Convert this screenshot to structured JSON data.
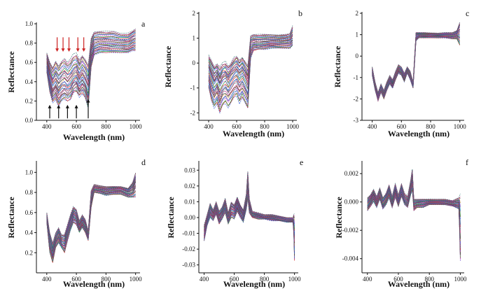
{
  "chart_data": [
    {
      "panel": "a",
      "type": "line",
      "xlabel": "Wavelength (nm)",
      "ylabel": "Reflectance",
      "xlim": [
        330,
        1030
      ],
      "ylim": [
        0.0,
        1.0
      ],
      "xticks": [
        400,
        600,
        800,
        1000
      ],
      "yticks": [
        0.0,
        0.2,
        0.4,
        0.6,
        0.8,
        1.0
      ],
      "ytick_labels": [
        "0.0",
        "0.2",
        "0.4",
        "0.6",
        "0.8",
        "1.0"
      ],
      "annotations": {
        "down_arrows_red_nm": [
          470,
          510,
          550,
          610,
          650
        ],
        "up_arrows_black_nm": [
          420,
          480,
          540,
          600,
          680
        ]
      },
      "series_band": {
        "x": [
          400,
          420,
          440,
          460,
          480,
          500,
          520,
          540,
          560,
          580,
          600,
          620,
          640,
          660,
          680,
          700,
          720,
          760,
          800,
          850,
          900,
          950,
          980,
          1000
        ],
        "low": [
          0.5,
          0.3,
          0.18,
          0.22,
          0.15,
          0.2,
          0.22,
          0.2,
          0.22,
          0.28,
          0.3,
          0.24,
          0.28,
          0.24,
          0.12,
          0.55,
          0.68,
          0.7,
          0.7,
          0.7,
          0.7,
          0.7,
          0.72,
          0.72
        ],
        "mid": [
          0.6,
          0.45,
          0.35,
          0.4,
          0.33,
          0.38,
          0.4,
          0.37,
          0.4,
          0.44,
          0.47,
          0.4,
          0.45,
          0.4,
          0.32,
          0.7,
          0.78,
          0.8,
          0.8,
          0.8,
          0.79,
          0.79,
          0.82,
          0.83
        ],
        "high": [
          0.7,
          0.6,
          0.55,
          0.62,
          0.57,
          0.62,
          0.64,
          0.6,
          0.63,
          0.68,
          0.69,
          0.62,
          0.68,
          0.64,
          0.58,
          0.85,
          0.92,
          0.92,
          0.92,
          0.92,
          0.9,
          0.9,
          0.93,
          0.95
        ]
      }
    },
    {
      "panel": "b",
      "type": "line",
      "xlabel": "Wavelength (nm)",
      "ylabel": "Reflectance",
      "xlim": [
        330,
        1030
      ],
      "ylim": [
        -2.3,
        2.0
      ],
      "xticks": [
        400,
        600,
        800,
        1000
      ],
      "yticks": [
        -2,
        -1,
        0,
        1,
        2
      ],
      "ytick_labels": [
        "-2",
        "-1",
        "0",
        "1",
        "2"
      ],
      "series_band": {
        "x": [
          400,
          420,
          440,
          460,
          480,
          500,
          520,
          540,
          560,
          580,
          600,
          620,
          640,
          660,
          680,
          700,
          720,
          760,
          800,
          850,
          900,
          950,
          980,
          1000
        ],
        "low": [
          -1.0,
          -1.5,
          -1.8,
          -1.6,
          -2.0,
          -1.7,
          -1.6,
          -1.8,
          -1.6,
          -1.4,
          -1.3,
          -1.6,
          -1.4,
          -1.6,
          -1.8,
          0.2,
          0.5,
          0.55,
          0.55,
          0.6,
          0.6,
          0.6,
          0.6,
          0.7
        ],
        "mid": [
          -0.2,
          -0.5,
          -0.8,
          -0.6,
          -0.9,
          -0.7,
          -0.6,
          -0.8,
          -0.6,
          -0.45,
          -0.35,
          -0.55,
          -0.4,
          -0.6,
          -0.9,
          0.75,
          0.8,
          0.82,
          0.82,
          0.85,
          0.85,
          0.88,
          0.9,
          1.0
        ],
        "high": [
          0.3,
          0.1,
          -0.1,
          0.0,
          -0.2,
          0.0,
          0.05,
          -0.1,
          0.05,
          0.2,
          0.3,
          0.1,
          0.25,
          0.1,
          -0.1,
          1.1,
          1.15,
          1.15,
          1.15,
          1.15,
          1.12,
          1.15,
          1.2,
          1.5
        ]
      }
    },
    {
      "panel": "c",
      "type": "line",
      "xlabel": "Wavelength (nm)",
      "ylabel": "Reflectance",
      "xlim": [
        330,
        1030
      ],
      "ylim": [
        -3.0,
        2.0
      ],
      "xticks": [
        400,
        600,
        800,
        1000
      ],
      "yticks": [
        -3,
        -2,
        -1,
        0,
        1,
        2
      ],
      "ytick_labels": [
        "-3",
        "-2",
        "-1",
        "0",
        "1",
        "2"
      ],
      "series_band": {
        "x": [
          400,
          420,
          440,
          460,
          480,
          500,
          520,
          540,
          560,
          580,
          600,
          620,
          640,
          660,
          680,
          700,
          720,
          760,
          800,
          850,
          900,
          950,
          980,
          1000
        ],
        "low": [
          -0.9,
          -1.6,
          -2.1,
          -1.7,
          -2.0,
          -1.6,
          -1.3,
          -1.5,
          -1.1,
          -0.8,
          -0.9,
          -1.2,
          -0.8,
          -1.1,
          -1.5,
          0.7,
          0.85,
          0.85,
          0.85,
          0.85,
          0.85,
          0.8,
          0.8,
          0.5
        ],
        "mid": [
          -0.7,
          -1.4,
          -1.9,
          -1.5,
          -1.8,
          -1.4,
          -1.1,
          -1.3,
          -0.9,
          -0.6,
          -0.7,
          -1.0,
          -0.65,
          -0.9,
          -1.35,
          0.95,
          1.0,
          1.0,
          0.98,
          0.97,
          0.97,
          0.96,
          1.0,
          1.0
        ],
        "high": [
          -0.5,
          -1.2,
          -1.7,
          -1.3,
          -1.6,
          -1.2,
          -0.9,
          -1.1,
          -0.7,
          -0.4,
          -0.5,
          -0.8,
          -0.5,
          -0.7,
          -1.2,
          1.1,
          1.1,
          1.1,
          1.08,
          1.08,
          1.1,
          1.1,
          1.2,
          1.6
        ]
      }
    },
    {
      "panel": "d",
      "type": "line",
      "xlabel": "Wavelength (nm)",
      "ylabel": "Reflectance",
      "xlim": [
        330,
        1030
      ],
      "ylim": [
        0.0,
        1.1
      ],
      "xticks": [
        400,
        600,
        800,
        1000
      ],
      "yticks": [
        0.2,
        0.4,
        0.6,
        0.8,
        1.0
      ],
      "ytick_labels": [
        "0.2",
        "0.4",
        "0.6",
        "0.8",
        "1.0"
      ],
      "series_band": {
        "x": [
          400,
          420,
          440,
          460,
          480,
          500,
          520,
          540,
          560,
          580,
          600,
          620,
          640,
          660,
          680,
          700,
          720,
          760,
          800,
          850,
          900,
          950,
          980,
          1000
        ],
        "low": [
          0.5,
          0.2,
          0.1,
          0.25,
          0.3,
          0.25,
          0.2,
          0.32,
          0.42,
          0.5,
          0.48,
          0.4,
          0.45,
          0.4,
          0.32,
          0.65,
          0.8,
          0.79,
          0.77,
          0.78,
          0.78,
          0.75,
          0.75,
          0.75
        ],
        "mid": [
          0.55,
          0.3,
          0.2,
          0.33,
          0.38,
          0.31,
          0.3,
          0.4,
          0.5,
          0.58,
          0.55,
          0.46,
          0.52,
          0.47,
          0.37,
          0.75,
          0.84,
          0.83,
          0.82,
          0.83,
          0.83,
          0.8,
          0.82,
          0.9
        ],
        "high": [
          0.6,
          0.4,
          0.3,
          0.4,
          0.45,
          0.38,
          0.38,
          0.48,
          0.58,
          0.66,
          0.63,
          0.52,
          0.58,
          0.53,
          0.42,
          0.82,
          0.88,
          0.87,
          0.86,
          0.86,
          0.86,
          0.84,
          0.9,
          1.0
        ]
      }
    },
    {
      "panel": "e",
      "type": "line",
      "xlabel": "Wavelength (nm)",
      "ylabel": "Reflectance",
      "xlim": [
        365,
        1025
      ],
      "ylim": [
        -0.035,
        0.035
      ],
      "xticks": [
        400,
        600,
        800,
        1000
      ],
      "yticks": [
        -0.03,
        -0.02,
        -0.01,
        0.0,
        0.01,
        0.02,
        0.03
      ],
      "ytick_labels": [
        "-0.03",
        "-0.02",
        "-0.01",
        "0.00",
        "0.01",
        "0.02",
        "0.03"
      ],
      "series_band": {
        "x": [
          400,
          420,
          440,
          460,
          480,
          500,
          520,
          540,
          560,
          580,
          600,
          620,
          640,
          660,
          680,
          690,
          700,
          720,
          760,
          800,
          850,
          900,
          950,
          990,
          995,
          1000
        ],
        "low": [
          -0.015,
          -0.005,
          0.0,
          -0.002,
          0.002,
          -0.004,
          -0.001,
          0.003,
          -0.004,
          0.0,
          -0.001,
          0.004,
          0.0,
          -0.003,
          0.005,
          0.012,
          0.003,
          0.0,
          -0.001,
          -0.001,
          -0.002,
          -0.002,
          -0.003,
          -0.003,
          -0.01,
          -0.027
        ],
        "mid": [
          -0.01,
          -0.002,
          0.005,
          0.002,
          0.006,
          0.0,
          0.003,
          0.008,
          -0.001,
          0.005,
          0.004,
          0.009,
          0.004,
          0.001,
          0.01,
          0.026,
          0.008,
          0.002,
          0.001,
          0.0,
          0.0,
          -0.001,
          -0.002,
          -0.002,
          -0.005,
          -0.02
        ],
        "high": [
          -0.005,
          0.002,
          0.009,
          0.005,
          0.01,
          0.004,
          0.007,
          0.012,
          0.003,
          0.01,
          0.008,
          0.013,
          0.008,
          0.005,
          0.015,
          0.029,
          0.012,
          0.004,
          0.003,
          0.002,
          0.002,
          0.001,
          0.0,
          0.0,
          0.002,
          0.002
        ]
      }
    },
    {
      "panel": "f",
      "type": "line",
      "xlabel": "Wavelength (nm)",
      "ylabel": "Reflectance",
      "xlim": [
        365,
        1025
      ],
      "ylim": [
        -0.005,
        0.0028
      ],
      "xticks": [
        400,
        600,
        800,
        1000
      ],
      "yticks": [
        -0.004,
        -0.002,
        0.0,
        0.002
      ],
      "ytick_labels": [
        "-0.004",
        "-0.002",
        "0.000",
        "0.002"
      ],
      "series_band": {
        "x": [
          400,
          420,
          440,
          460,
          480,
          500,
          520,
          540,
          560,
          580,
          600,
          620,
          640,
          660,
          680,
          690,
          700,
          720,
          760,
          800,
          850,
          900,
          950,
          990,
          995,
          1000
        ],
        "low": [
          -0.0006,
          -0.0003,
          0.0,
          -0.0004,
          0.0002,
          -0.0005,
          -0.0002,
          0.0003,
          -0.0004,
          0.0003,
          -0.0003,
          0.0004,
          -0.0002,
          -0.0004,
          0.0005,
          0.0008,
          -0.0006,
          -0.0004,
          -0.0004,
          -0.0002,
          -0.0002,
          -0.0002,
          -0.0003,
          -0.0005,
          -0.002,
          -0.0042
        ],
        "mid": [
          -0.0002,
          0.0001,
          0.0005,
          0.0,
          0.0006,
          -0.0001,
          0.0002,
          0.0008,
          0.0,
          0.0008,
          0.0001,
          0.0009,
          0.0002,
          0.0,
          0.0011,
          0.0021,
          -0.0002,
          -0.0001,
          -0.0001,
          0.0,
          0.0,
          0.0,
          -0.0001,
          -0.0001,
          -0.0008,
          -0.003
        ],
        "high": [
          0.0003,
          0.0005,
          0.0009,
          0.0004,
          0.001,
          0.0003,
          0.0006,
          0.0012,
          0.0004,
          0.0013,
          0.0005,
          0.0013,
          0.0006,
          0.0004,
          0.0016,
          0.0023,
          0.0002,
          0.0002,
          0.0002,
          0.0002,
          0.0002,
          0.0002,
          0.0001,
          0.0003,
          0.0004,
          0.0006
        ]
      }
    }
  ],
  "colors": {
    "series": [
      "#1f4fd1",
      "#d02020",
      "#1a9a3a",
      "#c020c0",
      "#1aa0c0",
      "#7a3fc0",
      "#c08a10",
      "#2a2a2a",
      "#d04090",
      "#3a7a7a",
      "#a02a50",
      "#2060a0"
    ],
    "axis": "#111111",
    "arrow_down": "#cc2222",
    "arrow_up": "#111111"
  }
}
